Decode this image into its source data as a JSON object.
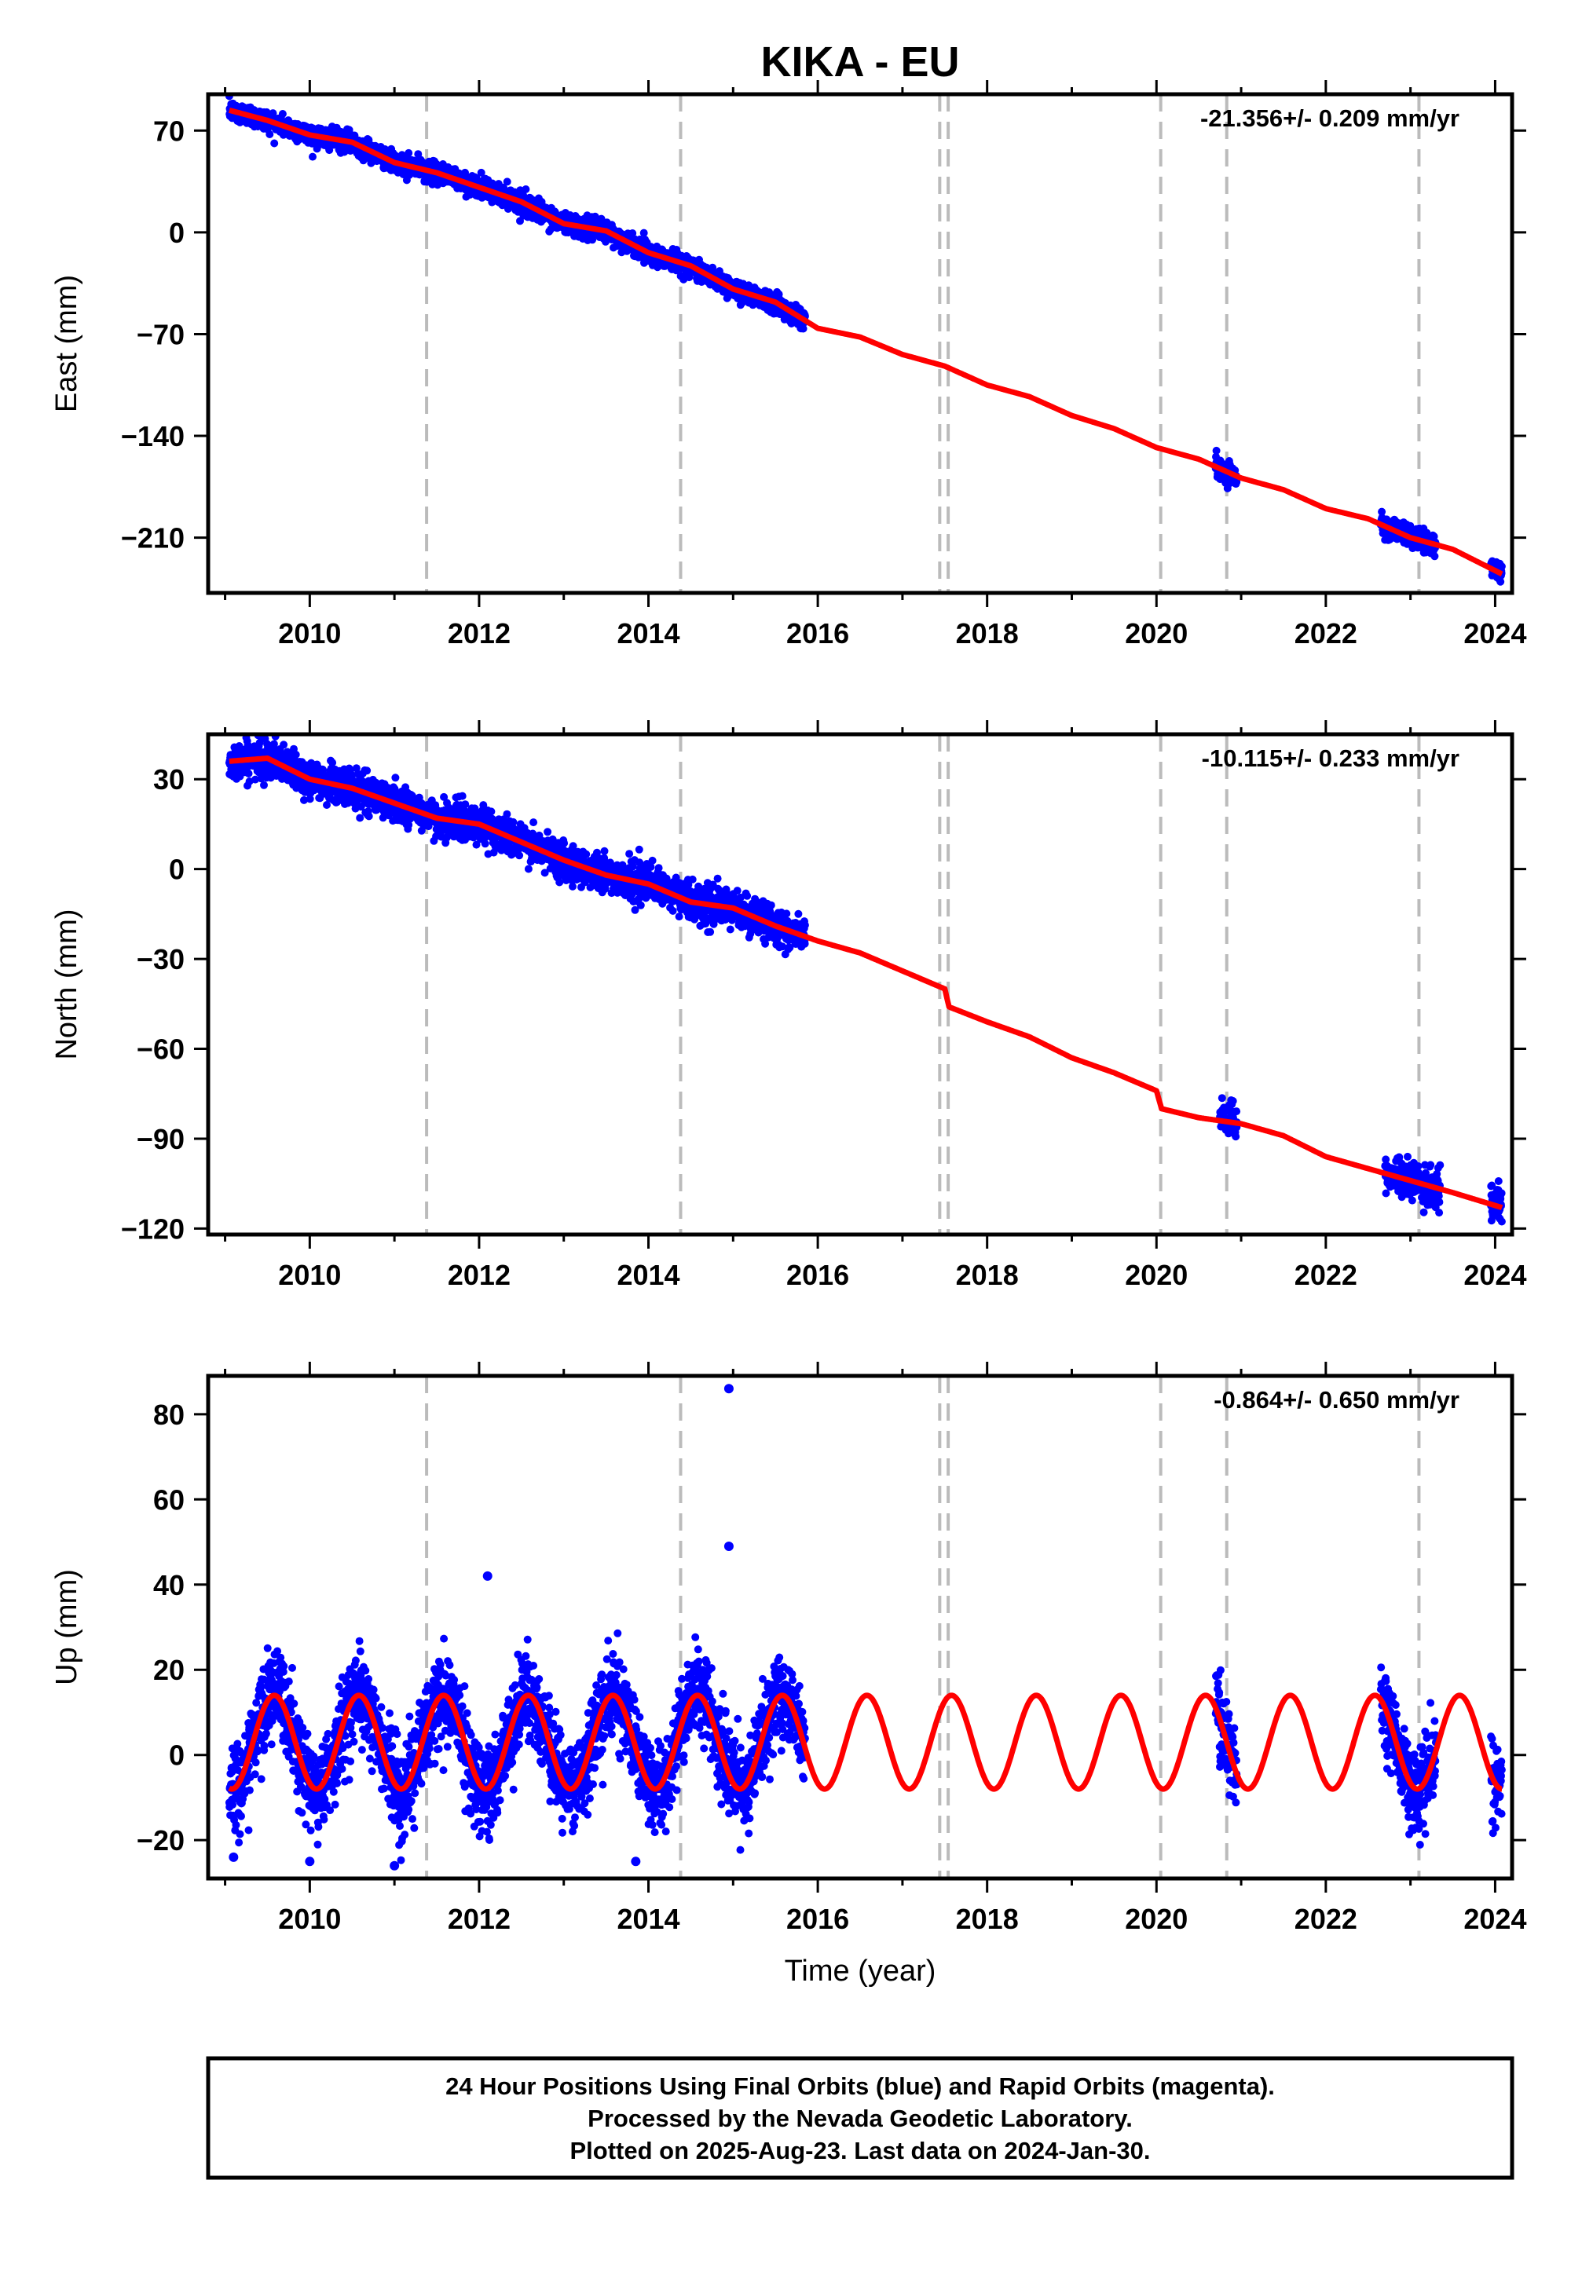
{
  "title": "KIKA - EU",
  "footer": {
    "lines": [
      "24 Hour Positions Using Final Orbits (blue) and Rapid Orbits (magenta).",
      "Processed by the Nevada Geodetic Laboratory.",
      "Plotted on 2025-Aug-23. Last data on 2024-Jan-30."
    ]
  },
  "colors": {
    "data": "#0000ff",
    "model": "#ff0000",
    "events": "#bbbbbb",
    "frame": "#000000"
  },
  "chart_data": [
    {
      "type": "scatter",
      "component": "east",
      "ylabel": "East (mm)",
      "xlabel": "",
      "rate_label": "-21.356+/- 0.209 mm/yr",
      "xlim": [
        2008.8,
        2024.2
      ],
      "ylim": [
        -248,
        95
      ],
      "xticks": [
        2010,
        2012,
        2014,
        2016,
        2018,
        2020,
        2022,
        2024
      ],
      "yticks": [
        70,
        0,
        -70,
        -140,
        -210
      ],
      "ytick_labels": [
        "70",
        "0",
        "−70",
        "−140",
        "−210"
      ],
      "event_lines": [
        2011.38,
        2014.38,
        2017.44,
        2017.54,
        2020.05,
        2020.83,
        2023.1
      ],
      "data_periods": [
        [
          2009.05,
          2015.85
        ],
        [
          2020.7,
          2020.95
        ],
        [
          2022.65,
          2023.3
        ],
        [
          2023.95,
          2024.08
        ]
      ],
      "model": {
        "x": [
          2009.05,
          2009.5,
          2010.0,
          2010.5,
          2011.0,
          2011.5,
          2012.0,
          2012.5,
          2013.0,
          2013.5,
          2014.0,
          2014.5,
          2015.0,
          2015.5,
          2016.0,
          2016.5,
          2017.0,
          2017.5,
          2018.0,
          2018.5,
          2019.0,
          2019.5,
          2020.0,
          2020.5,
          2021.0,
          2021.5,
          2022.0,
          2022.5,
          2023.0,
          2023.5,
          2024.08
        ],
        "y": [
          84,
          77,
          67,
          62,
          48,
          41,
          31,
          21,
          6,
          1,
          -14,
          -23,
          -39,
          -48,
          -66,
          -72,
          -84,
          -92,
          -105,
          -113,
          -126,
          -135,
          -148,
          -156,
          -169,
          -177,
          -190,
          -197,
          -210,
          -218,
          -235
        ]
      },
      "scatter_noise_mm": 3.5
    },
    {
      "type": "scatter",
      "component": "north",
      "ylabel": "North (mm)",
      "xlabel": "",
      "rate_label": "-10.115+/- 0.233 mm/yr",
      "xlim": [
        2008.8,
        2024.2
      ],
      "ylim": [
        -122,
        45
      ],
      "xticks": [
        2010,
        2012,
        2014,
        2016,
        2018,
        2020,
        2022,
        2024
      ],
      "yticks": [
        30,
        0,
        -30,
        -60,
        -90,
        -120
      ],
      "ytick_labels": [
        "30",
        "0",
        "−30",
        "−60",
        "−90",
        "−120"
      ],
      "event_lines": [
        2011.38,
        2014.38,
        2017.44,
        2017.54,
        2020.05,
        2020.83,
        2023.1
      ],
      "data_periods": [
        [
          2009.05,
          2015.85
        ],
        [
          2020.75,
          2020.95
        ],
        [
          2022.7,
          2023.35
        ],
        [
          2023.95,
          2024.08
        ]
      ],
      "model": {
        "x": [
          2009.05,
          2009.5,
          2010.0,
          2010.5,
          2011.0,
          2011.5,
          2012.0,
          2012.5,
          2013.0,
          2013.5,
          2014.0,
          2014.5,
          2015.0,
          2015.5,
          2016.0,
          2016.5,
          2017.0,
          2017.5,
          2017.55,
          2018.0,
          2018.5,
          2019.0,
          2019.5,
          2020.0,
          2020.06,
          2020.5,
          2021.0,
          2021.5,
          2022.0,
          2022.5,
          2023.0,
          2023.5,
          2024.08
        ],
        "y": [
          36,
          37,
          30,
          27,
          22,
          17,
          15,
          9,
          3,
          -2,
          -5,
          -11,
          -13,
          -19,
          -24,
          -28,
          -34,
          -40,
          -46,
          -51,
          -56,
          -63,
          -68,
          -74,
          -80,
          -83,
          -85,
          -89,
          -96,
          -100,
          -104,
          -108,
          -113
        ]
      },
      "scatter_noise_mm": 3.0
    },
    {
      "type": "scatter",
      "component": "up",
      "ylabel": "Up (mm)",
      "xlabel": "Time (year)",
      "rate_label": "-0.864+/- 0.650 mm/yr",
      "xlim": [
        2008.8,
        2024.2
      ],
      "ylim": [
        -29,
        89
      ],
      "xticks": [
        2010,
        2012,
        2014,
        2016,
        2018,
        2020,
        2022,
        2024
      ],
      "yticks": [
        80,
        60,
        40,
        20,
        0,
        -20
      ],
      "ytick_labels": [
        "80",
        "60",
        "40",
        "20",
        "0",
        "−20"
      ],
      "event_lines": [
        2011.38,
        2014.38,
        2017.44,
        2017.54,
        2020.05,
        2020.83,
        2023.1
      ],
      "data_periods": [
        [
          2009.05,
          2015.85
        ],
        [
          2020.7,
          2020.95
        ],
        [
          2022.65,
          2023.3
        ],
        [
          2023.95,
          2024.08
        ]
      ],
      "seasonal": {
        "amplitude_mm": 11,
        "peak_phase_year": 0.58,
        "offset_mm": 3
      },
      "outliers": [
        {
          "x": 2014.95,
          "y": 86
        },
        {
          "x": 2014.95,
          "y": 49
        },
        {
          "x": 2012.1,
          "y": 42
        },
        {
          "x": 2010.0,
          "y": -25
        },
        {
          "x": 2011.0,
          "y": -26
        },
        {
          "x": 2013.85,
          "y": -25
        },
        {
          "x": 2009.1,
          "y": -24
        }
      ],
      "scatter_noise_mm": 5.0
    }
  ]
}
